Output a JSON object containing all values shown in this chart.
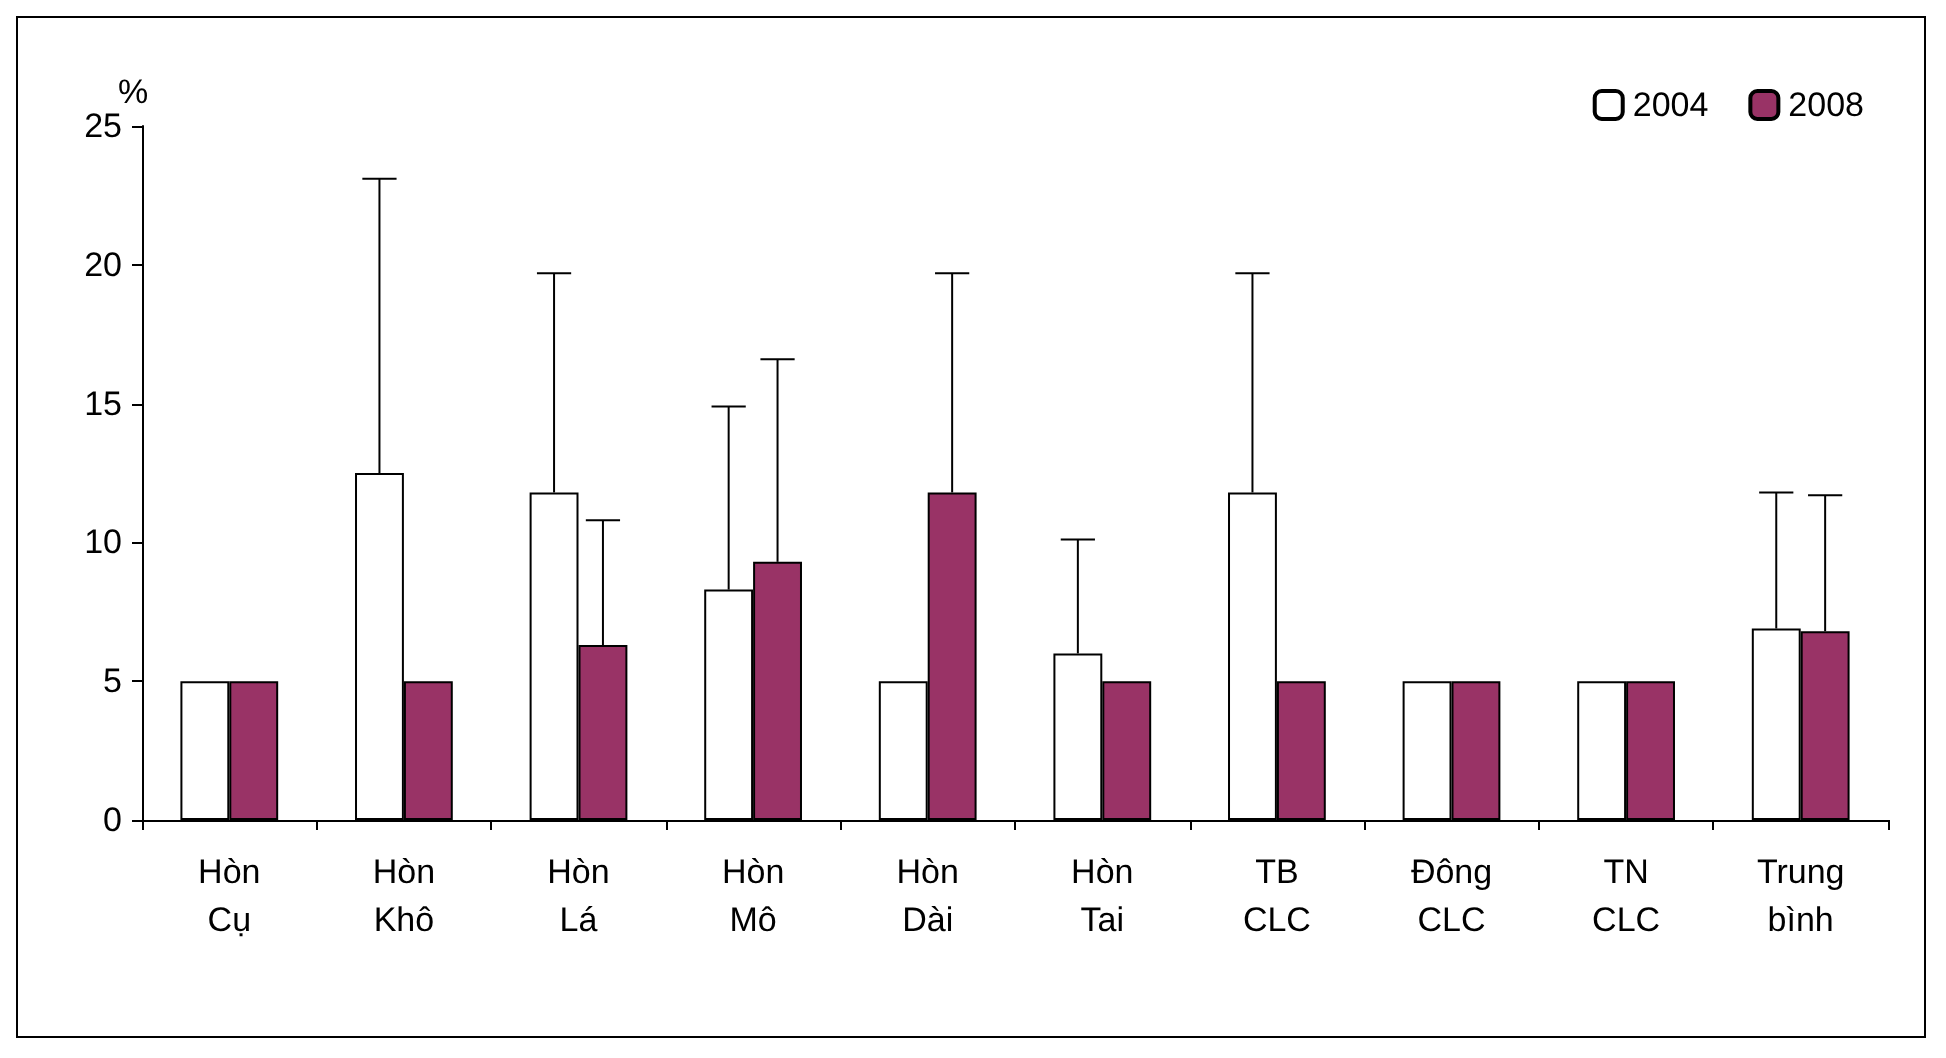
{
  "chart_data": {
    "type": "bar",
    "ylabel": "%",
    "categories": [
      "Hòn Cụ",
      "Hòn Khô",
      "Hòn Lá",
      "Hòn Mô",
      "Hòn Dài",
      "Hòn Tai",
      "TB CLC",
      "Đông CLC",
      "TN CLC",
      "Trung bình"
    ],
    "series": [
      {
        "name": "2004",
        "color": "#ffffff",
        "values": [
          5,
          12.5,
          11.8,
          8.3,
          5,
          6,
          11.8,
          5,
          5,
          6.9
        ],
        "errors": [
          null,
          [
            12.5,
            23.1
          ],
          [
            11.8,
            19.7
          ],
          [
            8.3,
            14.9
          ],
          null,
          [
            6,
            10.1
          ],
          [
            11.8,
            19.7
          ],
          null,
          null,
          [
            6.9,
            11.8
          ]
        ]
      },
      {
        "name": "2008",
        "color": "#993366",
        "values": [
          5,
          5,
          6.3,
          9.3,
          11.8,
          5,
          5,
          5,
          5,
          6.8
        ],
        "errors": [
          null,
          null,
          [
            6.3,
            10.8
          ],
          [
            9.3,
            16.6
          ],
          [
            11.8,
            19.7
          ],
          null,
          null,
          null,
          null,
          [
            6.8,
            11.7
          ]
        ]
      }
    ],
    "ylim": [
      0,
      25
    ],
    "yticks": [
      0,
      5,
      10,
      15,
      20,
      25
    ],
    "grid": false,
    "legend": "top right"
  }
}
